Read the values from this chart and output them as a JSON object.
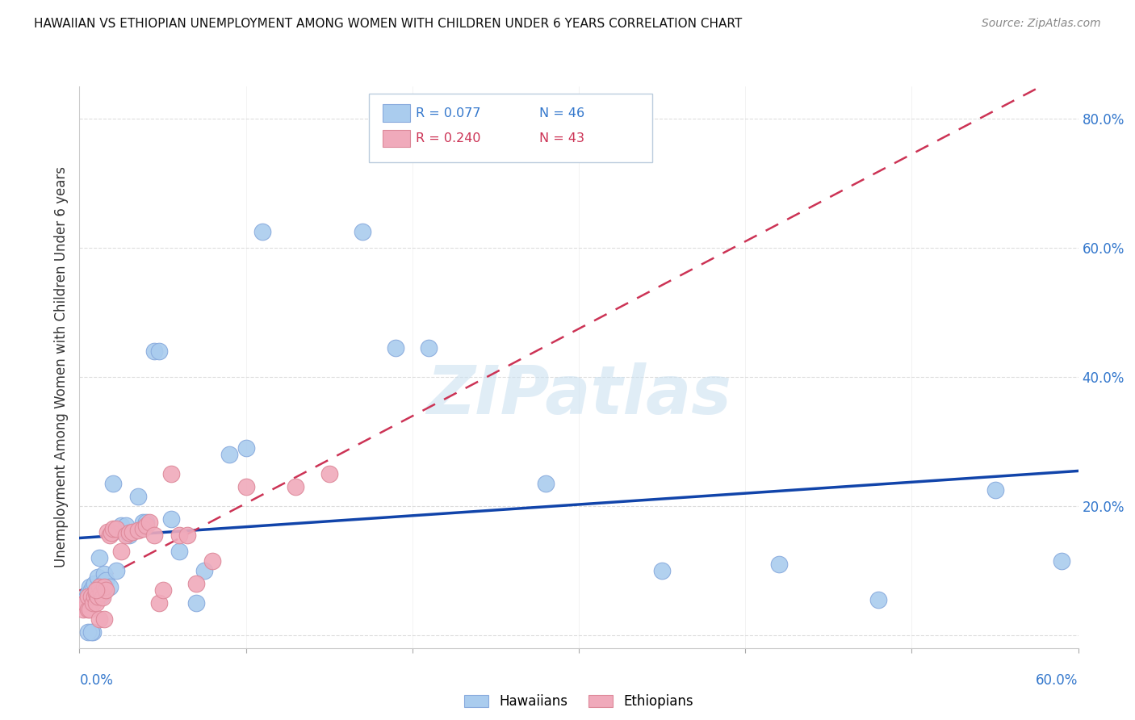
{
  "title": "HAWAIIAN VS ETHIOPIAN UNEMPLOYMENT AMONG WOMEN WITH CHILDREN UNDER 6 YEARS CORRELATION CHART",
  "source": "Source: ZipAtlas.com",
  "ylabel": "Unemployment Among Women with Children Under 6 years",
  "xlim": [
    0.0,
    0.6
  ],
  "ylim": [
    -0.02,
    0.85
  ],
  "yticks": [
    0.0,
    0.2,
    0.4,
    0.6,
    0.8
  ],
  "ytick_labels": [
    "",
    "20.0%",
    "40.0%",
    "60.0%",
    "80.0%"
  ],
  "xtick_vals": [
    0.0,
    0.1,
    0.2,
    0.3,
    0.4,
    0.5,
    0.6
  ],
  "watermark": "ZIPatlas",
  "legend_hawaii_R": "R = 0.077",
  "legend_hawaii_N": "N = 46",
  "legend_ethiopia_R": "R = 0.240",
  "legend_ethiopia_N": "N = 43",
  "hawaii_color": "#aaccee",
  "hawaii_edge": "#88aadd",
  "ethiopia_color": "#f0aabb",
  "ethiopia_edge": "#dd8899",
  "trendline_hawaii_color": "#1144aa",
  "trendline_ethiopia_color": "#cc3355",
  "hawaii_x": [
    0.003,
    0.005,
    0.006,
    0.007,
    0.008,
    0.008,
    0.009,
    0.01,
    0.011,
    0.012,
    0.013,
    0.014,
    0.015,
    0.016,
    0.018,
    0.02,
    0.022,
    0.025,
    0.028,
    0.03,
    0.035,
    0.038,
    0.04,
    0.045,
    0.048,
    0.055,
    0.06,
    0.07,
    0.075,
    0.09,
    0.1,
    0.11,
    0.17,
    0.19,
    0.21,
    0.28,
    0.35,
    0.42,
    0.48,
    0.55,
    0.59,
    0.02,
    0.012,
    0.008,
    0.005,
    0.007
  ],
  "hawaii_y": [
    0.055,
    0.065,
    0.075,
    0.07,
    0.06,
    0.075,
    0.08,
    0.06,
    0.09,
    0.065,
    0.06,
    0.08,
    0.095,
    0.085,
    0.075,
    0.16,
    0.1,
    0.17,
    0.17,
    0.155,
    0.215,
    0.175,
    0.175,
    0.44,
    0.44,
    0.18,
    0.13,
    0.05,
    0.1,
    0.28,
    0.29,
    0.625,
    0.625,
    0.445,
    0.445,
    0.235,
    0.1,
    0.11,
    0.055,
    0.225,
    0.115,
    0.235,
    0.12,
    0.005,
    0.005,
    0.005
  ],
  "ethiopia_x": [
    0.002,
    0.003,
    0.005,
    0.005,
    0.006,
    0.007,
    0.008,
    0.009,
    0.01,
    0.01,
    0.011,
    0.012,
    0.013,
    0.014,
    0.015,
    0.016,
    0.017,
    0.018,
    0.019,
    0.02,
    0.022,
    0.025,
    0.028,
    0.03,
    0.032,
    0.035,
    0.038,
    0.04,
    0.042,
    0.045,
    0.048,
    0.05,
    0.055,
    0.06,
    0.065,
    0.07,
    0.08,
    0.1,
    0.13,
    0.15,
    0.01,
    0.012,
    0.015
  ],
  "ethiopia_y": [
    0.04,
    0.05,
    0.04,
    0.06,
    0.04,
    0.06,
    0.05,
    0.06,
    0.065,
    0.05,
    0.06,
    0.075,
    0.065,
    0.058,
    0.075,
    0.07,
    0.16,
    0.155,
    0.158,
    0.165,
    0.165,
    0.13,
    0.155,
    0.158,
    0.16,
    0.162,
    0.165,
    0.17,
    0.175,
    0.155,
    0.05,
    0.07,
    0.25,
    0.155,
    0.155,
    0.08,
    0.115,
    0.23,
    0.23,
    0.25,
    0.07,
    0.025,
    0.025
  ]
}
